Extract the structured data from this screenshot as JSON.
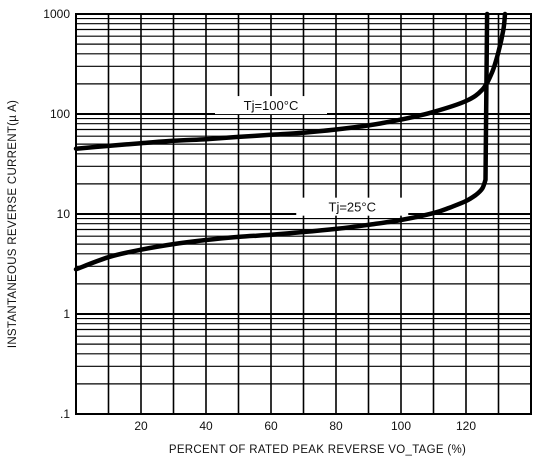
{
  "chart_data": {
    "type": "line",
    "title": "",
    "xlabel": "PERCENT OF RATED PEAK REVERSE VO_TAGE  (%)",
    "ylabel": "INSTANTANEOUS REVERSE CURRENT(µ A)",
    "xlim": [
      0,
      140
    ],
    "ylim": [
      0.1,
      1000
    ],
    "yscale": "log",
    "grid": true,
    "x_ticks": [
      20,
      40,
      60,
      80,
      100,
      120
    ],
    "x_tick_labels": [
      "20",
      "40",
      "60",
      "80",
      "100",
      "120"
    ],
    "y_ticks": [
      0.1,
      1,
      10,
      100,
      1000
    ],
    "y_tick_labels": [
      ".1",
      "1",
      "10",
      "100",
      "1000"
    ],
    "series": [
      {
        "name": "Tj=100°C",
        "label": "Tj=100°C",
        "x": [
          0,
          10,
          20,
          30,
          40,
          50,
          60,
          70,
          80,
          90,
          100,
          110,
          120,
          125,
          128,
          130,
          131.5,
          132
        ],
        "y": [
          45,
          48,
          51,
          54,
          56,
          59,
          62,
          65,
          70,
          77,
          88,
          105,
          135,
          175,
          260,
          420,
          700,
          1000
        ]
      },
      {
        "name": "Tj=25°C",
        "label": "Tj=25°C",
        "x": [
          0,
          10,
          20,
          30,
          40,
          50,
          60,
          70,
          80,
          90,
          100,
          110,
          115,
          120,
          123,
          125,
          126,
          126.5
        ],
        "y": [
          2.8,
          3.7,
          4.4,
          5.0,
          5.5,
          5.9,
          6.2,
          6.6,
          7.1,
          7.8,
          8.7,
          10.2,
          11.6,
          13.5,
          15.5,
          18,
          22,
          1000
        ]
      }
    ]
  }
}
